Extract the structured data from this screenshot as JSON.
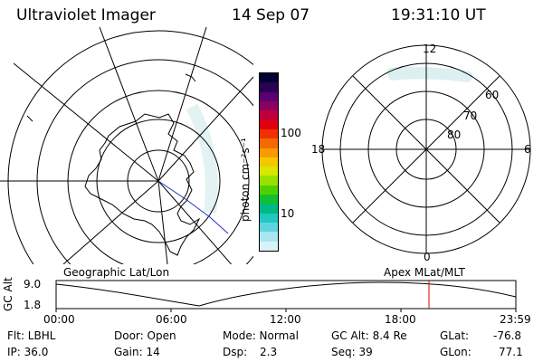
{
  "header": {
    "title": "Ultraviolet Imager",
    "date": "14 Sep 07",
    "time": "19:31:10 UT"
  },
  "colorbar": {
    "unit_label": "photon cm⁻²s⁻¹",
    "ticks": [
      "100",
      "10"
    ],
    "colors": [
      "#000033",
      "#2a0050",
      "#5a0070",
      "#8c0060",
      "#c0003a",
      "#e00010",
      "#f03000",
      "#f56a00",
      "#f89a00",
      "#f4c800",
      "#d8e600",
      "#98e000",
      "#50d000",
      "#10c030",
      "#00b884",
      "#20c8c0",
      "#60d4dc",
      "#a8e6f0",
      "#d8f2f8"
    ]
  },
  "left_map": {
    "label": "Geographic Lat/Lon"
  },
  "right_map": {
    "label": "Apex  MLat/MLT",
    "mlt_labels": {
      "top": "12",
      "left": "18",
      "right": "6",
      "bottom": "0"
    },
    "lat_labels": [
      "60",
      "70",
      "80"
    ]
  },
  "timeline": {
    "axis_title": "GC Alt",
    "y_ticks": [
      "9.0",
      "1.8"
    ],
    "x_ticks": [
      "00:00",
      "06:00",
      "12:00",
      "18:00",
      "23:59"
    ],
    "current_time_marker": "19:31",
    "marker_color": "#e00000"
  },
  "info": {
    "flt": "Flt: LBHL",
    "ip": "IP: 36.0",
    "door": "Door: Open",
    "gain": "Gain: 14",
    "mode": "Mode: Normal",
    "dsp_label": "Dsp:",
    "dsp_value": "2.3",
    "gcalt": "GC Alt: 8.4 Re",
    "seq": "Seq: 39",
    "glat_label": "GLat:",
    "glat_value": "-76.8",
    "glon_label": "GLon:",
    "glon_value": "77.1"
  }
}
